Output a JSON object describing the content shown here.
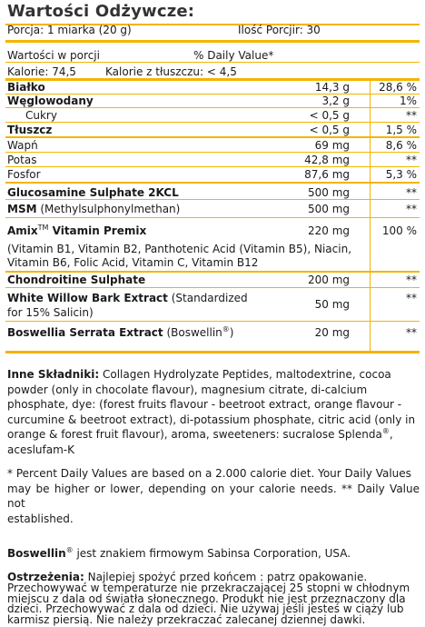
{
  "table": {
    "title": "Wartości Odżywcze:",
    "serving": "Porcja: 1 miarka (20 g)",
    "servings_per_container": "Ilość Porcjir: 30",
    "amount_per_serving": "Wartości w porcji",
    "dv_header": "% Daily Value*",
    "calories": "Kalorie: 74,5",
    "calories_from_fat": "Kalorie z tłuszczu: < 4,5",
    "rows": [
      {
        "name": "Białko",
        "amount": "14,3 g",
        "dv": "28,6 %"
      },
      {
        "name": "Węglowodany",
        "amount": "3,2 g",
        "dv": "1%"
      },
      {
        "name": "Cukry",
        "amount": "< 0,5 g",
        "dv": "**"
      },
      {
        "name": "Tłuszcz",
        "amount": "< 0,5 g",
        "dv": "1,5 %"
      },
      {
        "name": "Wapń",
        "amount": "69 mg",
        "dv": "8,6 %"
      },
      {
        "name": "Potas",
        "amount": "42,8 mg",
        "dv": "**"
      },
      {
        "name": "Fosfor",
        "amount": "87,6 mg",
        "dv": "5,3 %"
      },
      {
        "name": "Glucosamine Sulphate 2KCL",
        "amount": "500 mg",
        "dv": "**"
      },
      {
        "name": "MSM",
        "sub": "(Methylsulphonylmethan)",
        "amount": "500 mg",
        "dv": "**"
      },
      {
        "name": "Amix",
        "tm": "TM",
        "name2": " Vitamin Premix",
        "amount": "220 mg",
        "dv": "100 %"
      },
      {
        "name": "Chondroitine Sulphate",
        "amount": "200 mg",
        "dv": "**"
      },
      {
        "name": "White Willow Bark Extract",
        "sub": " (Standardized",
        "amount": "50 mg",
        "dv": "**"
      },
      {
        "name": "Boswellia Serrata Extract",
        "sub": " (Boswellin",
        "reg": "®",
        "sub2": ")",
        "amount": "20 mg",
        "dv": "**"
      }
    ],
    "premix_detail_1": "(Vitamin B1, Vitamin B2, Panthotenic Acid (Vitamin B5), Niacin,",
    "premix_detail_2": "Vitamin B6, Folic Acid, Vitamin C, Vitamin B12",
    "willow_detail": "for 15% Salicin)"
  },
  "ingredients": {
    "label": "Inne Składniki:",
    "line1": " Collagen Hydrolyzate Peptides, maltodextrine, cocoa",
    "line2": "powder (only in chocolate flavour), magnesium citrate, di-calcium",
    "line3": "phosphate, dye: (forest fruits flavour - beetroot extract, orange flavour -",
    "line4": "curcumine & beetroot extract), di-potassium phosphate, citric acid (only in",
    "line5": "orange & forest fruit flavour), aroma, sweeteners: sucralose Splenda",
    "reg": "®",
    "line5b": ",",
    "line6": "aceslufam-K"
  },
  "footnote": {
    "line1": "* Percent Daily Values are based on a 2.000 calorie diet. Your Daily Values",
    "line2": "may be higher or lower, depending on your calorie needs. ** Daily Value not",
    "line3": "established."
  },
  "trademark": {
    "brand": "Boswellin",
    "reg": "®",
    "text": " jest znakiem firmowym Sabinsa Corporation, USA."
  },
  "warning": {
    "label": "Ostrzeżenia:",
    "line1": " Najlepiej spożyć przed końcem : patrz opakowanie.",
    "line2": "Przechowywać w temperaturze nie przekraczającej 25 stopni w chłodnym",
    "line3": "miejscu z dala od światła słonecznego. Produkt nie jest przeznaczony dla",
    "line4": "dzieci. Przechowywać z dala od dzieci. Nie używaj jeśli jesteś w ciąży lub",
    "line5": "karmisz piersią. Nie należy przekraczać zalecanej dziennej dawki."
  },
  "colors": {
    "accent": "#f4b400",
    "text": "#1a1a1a"
  }
}
